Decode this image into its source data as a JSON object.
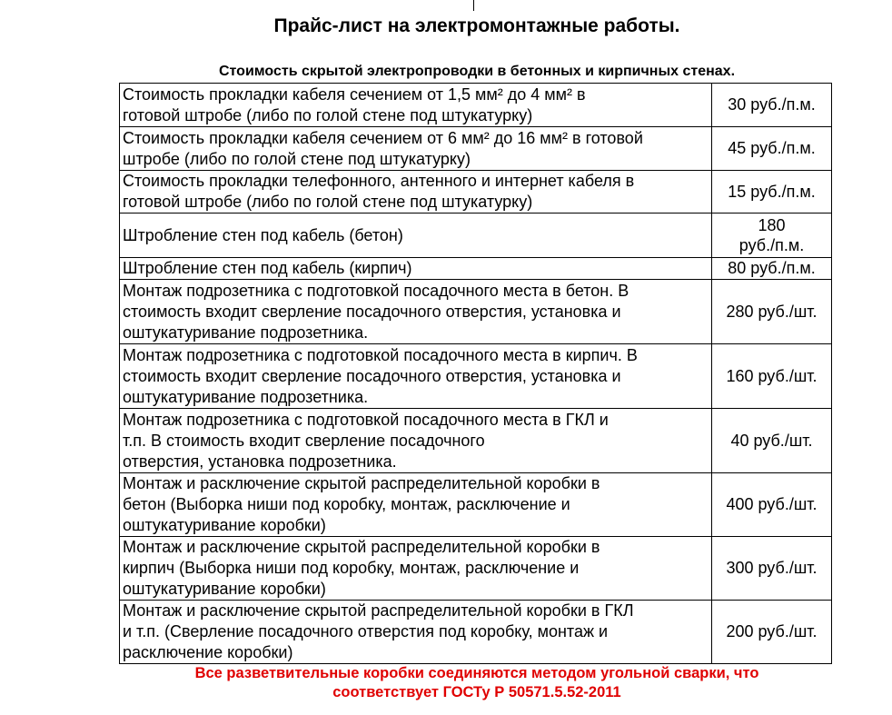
{
  "title": "Прайс-лист на электромонтажные работы.",
  "subtitle": "Стоимость скрытой электропроводки в бетонных и кирпичных стенах.",
  "rows": [
    {
      "desc": [
        "Стоимость прокладки кабеля сечением от 1,5 мм² до 4 мм² в",
        "готовой штробе (либо по голой стене под штукатурку)"
      ],
      "price": [
        "30 руб./п.м."
      ]
    },
    {
      "desc": [
        "Стоимость прокладки кабеля сечением от 6 мм² до 16 мм² в готовой",
        "штробе (либо по голой стене под штукатурку)"
      ],
      "price": [
        "45 руб./п.м."
      ]
    },
    {
      "desc": [
        "Стоимость прокладки телефонного, антенного и интернет кабеля в",
        "готовой штробе (либо по голой стене под штукатурку)"
      ],
      "price": [
        "15 руб./п.м."
      ]
    },
    {
      "desc": [
        "Штробление стен под кабель (бетон)"
      ],
      "price": [
        "180",
        "руб./п.м."
      ]
    },
    {
      "desc": [
        "Штробление стен под кабель (кирпич)"
      ],
      "price": [
        "80 руб./п.м."
      ]
    },
    {
      "desc": [
        "Монтаж подрозетника с подготовкой посадочного места в бетон. В",
        "стоимость входит сверление посадочного отверстия, установка и",
        "оштукатуривание подрозетника."
      ],
      "price": [
        "280 руб./шт."
      ]
    },
    {
      "desc": [
        "Монтаж подрозетника с подготовкой посадочного места в кирпич. В",
        "стоимость входит сверление посадочного отверстия, установка и",
        "оштукатуривание подрозетника."
      ],
      "price": [
        "160 руб./шт."
      ]
    },
    {
      "desc": [
        "Монтаж подрозетника с подготовкой посадочного места в ГКЛ и",
        "т.п. В стоимость входит сверление посадочного",
        "отверстия, установка подрозетника."
      ],
      "price": [
        "40 руб./шт."
      ]
    },
    {
      "desc": [
        "Монтаж и расключение скрытой распределительной коробки в",
        "бетон (Выборка ниши под коробку, монтаж, расключение и",
        "оштукатуривание коробки)"
      ],
      "price": [
        "400 руб./шт."
      ]
    },
    {
      "desc": [
        "Монтаж и расключение скрытой распределительной коробки в",
        "кирпич  (Выборка ниши под коробку, монтаж, расключение и",
        "оштукатуривание коробки)"
      ],
      "price": [
        "300 руб./шт."
      ]
    },
    {
      "desc": [
        "Монтаж и расключение скрытой распределительной коробки в ГКЛ",
        "и т.п. (Сверление посадочного отверстия под коробку, монтаж и",
        "расключение коробки)"
      ],
      "price": [
        "200 руб./шт."
      ]
    }
  ],
  "note": [
    "Все разветвительные  коробки соединяются методом угольной сварки, что",
    "соответствует ГОСТу Р 50571.5.52-2011"
  ],
  "colors": {
    "note": "#e00000"
  }
}
